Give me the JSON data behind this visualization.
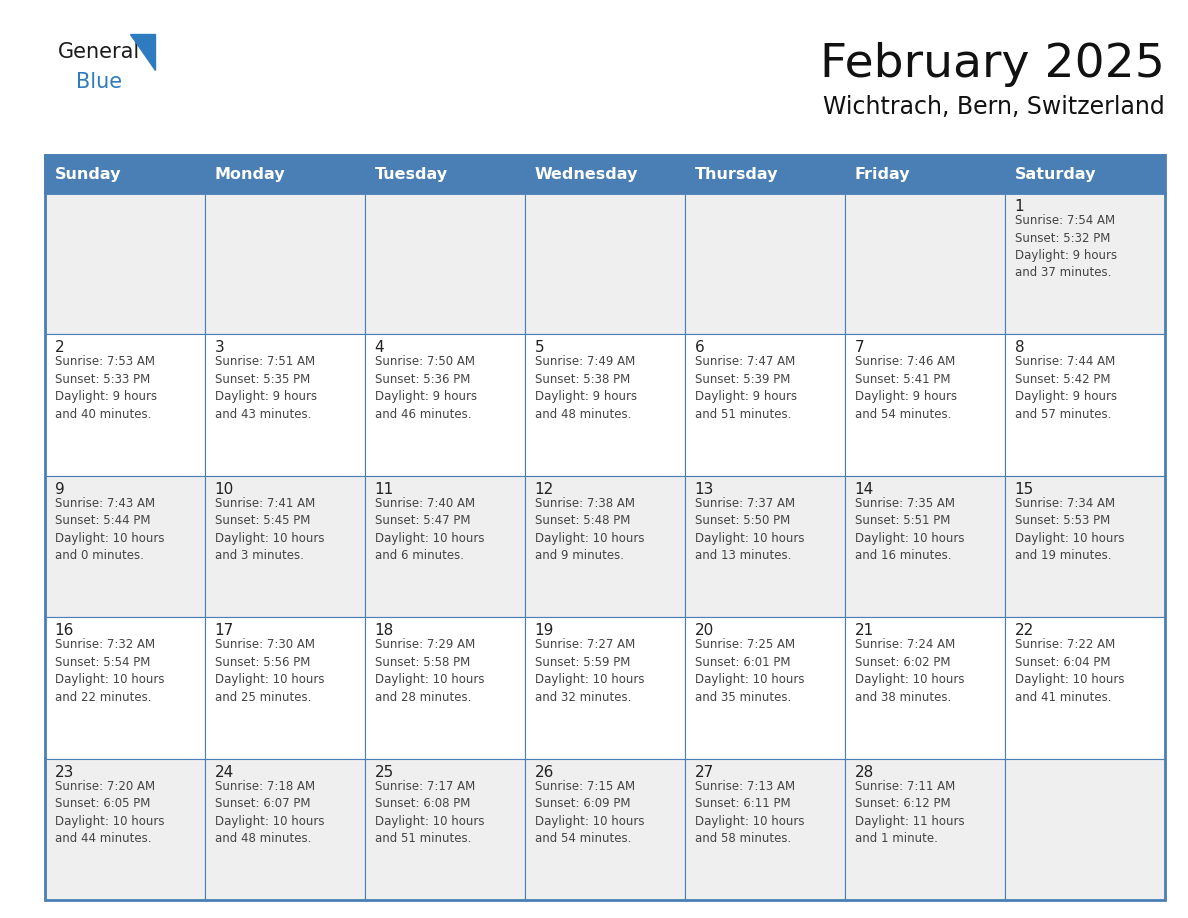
{
  "title": "February 2025",
  "subtitle": "Wichtrach, Bern, Switzerland",
  "header_bg": "#4a7fb5",
  "header_text": "#ffffff",
  "row_bg_light": "#efefef",
  "row_bg_white": "#ffffff",
  "day_names": [
    "Sunday",
    "Monday",
    "Tuesday",
    "Wednesday",
    "Thursday",
    "Friday",
    "Saturday"
  ],
  "border_color": "#4a7fb5",
  "text_color": "#444444",
  "day_number_color": "#222222",
  "logo_general_color": "#1a1a1a",
  "logo_blue_color": "#2e7bbf",
  "weeks": [
    [
      {
        "day": null,
        "sunrise": null,
        "sunset": null,
        "daylight": null
      },
      {
        "day": null,
        "sunrise": null,
        "sunset": null,
        "daylight": null
      },
      {
        "day": null,
        "sunrise": null,
        "sunset": null,
        "daylight": null
      },
      {
        "day": null,
        "sunrise": null,
        "sunset": null,
        "daylight": null
      },
      {
        "day": null,
        "sunrise": null,
        "sunset": null,
        "daylight": null
      },
      {
        "day": null,
        "sunrise": null,
        "sunset": null,
        "daylight": null
      },
      {
        "day": 1,
        "sunrise": "7:54 AM",
        "sunset": "5:32 PM",
        "daylight": "9 hours and 37 minutes."
      }
    ],
    [
      {
        "day": 2,
        "sunrise": "7:53 AM",
        "sunset": "5:33 PM",
        "daylight": "9 hours and 40 minutes."
      },
      {
        "day": 3,
        "sunrise": "7:51 AM",
        "sunset": "5:35 PM",
        "daylight": "9 hours and 43 minutes."
      },
      {
        "day": 4,
        "sunrise": "7:50 AM",
        "sunset": "5:36 PM",
        "daylight": "9 hours and 46 minutes."
      },
      {
        "day": 5,
        "sunrise": "7:49 AM",
        "sunset": "5:38 PM",
        "daylight": "9 hours and 48 minutes."
      },
      {
        "day": 6,
        "sunrise": "7:47 AM",
        "sunset": "5:39 PM",
        "daylight": "9 hours and 51 minutes."
      },
      {
        "day": 7,
        "sunrise": "7:46 AM",
        "sunset": "5:41 PM",
        "daylight": "9 hours and 54 minutes."
      },
      {
        "day": 8,
        "sunrise": "7:44 AM",
        "sunset": "5:42 PM",
        "daylight": "9 hours and 57 minutes."
      }
    ],
    [
      {
        "day": 9,
        "sunrise": "7:43 AM",
        "sunset": "5:44 PM",
        "daylight": "10 hours and 0 minutes."
      },
      {
        "day": 10,
        "sunrise": "7:41 AM",
        "sunset": "5:45 PM",
        "daylight": "10 hours and 3 minutes."
      },
      {
        "day": 11,
        "sunrise": "7:40 AM",
        "sunset": "5:47 PM",
        "daylight": "10 hours and 6 minutes."
      },
      {
        "day": 12,
        "sunrise": "7:38 AM",
        "sunset": "5:48 PM",
        "daylight": "10 hours and 9 minutes."
      },
      {
        "day": 13,
        "sunrise": "7:37 AM",
        "sunset": "5:50 PM",
        "daylight": "10 hours and 13 minutes."
      },
      {
        "day": 14,
        "sunrise": "7:35 AM",
        "sunset": "5:51 PM",
        "daylight": "10 hours and 16 minutes."
      },
      {
        "day": 15,
        "sunrise": "7:34 AM",
        "sunset": "5:53 PM",
        "daylight": "10 hours and 19 minutes."
      }
    ],
    [
      {
        "day": 16,
        "sunrise": "7:32 AM",
        "sunset": "5:54 PM",
        "daylight": "10 hours and 22 minutes."
      },
      {
        "day": 17,
        "sunrise": "7:30 AM",
        "sunset": "5:56 PM",
        "daylight": "10 hours and 25 minutes."
      },
      {
        "day": 18,
        "sunrise": "7:29 AM",
        "sunset": "5:58 PM",
        "daylight": "10 hours and 28 minutes."
      },
      {
        "day": 19,
        "sunrise": "7:27 AM",
        "sunset": "5:59 PM",
        "daylight": "10 hours and 32 minutes."
      },
      {
        "day": 20,
        "sunrise": "7:25 AM",
        "sunset": "6:01 PM",
        "daylight": "10 hours and 35 minutes."
      },
      {
        "day": 21,
        "sunrise": "7:24 AM",
        "sunset": "6:02 PM",
        "daylight": "10 hours and 38 minutes."
      },
      {
        "day": 22,
        "sunrise": "7:22 AM",
        "sunset": "6:04 PM",
        "daylight": "10 hours and 41 minutes."
      }
    ],
    [
      {
        "day": 23,
        "sunrise": "7:20 AM",
        "sunset": "6:05 PM",
        "daylight": "10 hours and 44 minutes."
      },
      {
        "day": 24,
        "sunrise": "7:18 AM",
        "sunset": "6:07 PM",
        "daylight": "10 hours and 48 minutes."
      },
      {
        "day": 25,
        "sunrise": "7:17 AM",
        "sunset": "6:08 PM",
        "daylight": "10 hours and 51 minutes."
      },
      {
        "day": 26,
        "sunrise": "7:15 AM",
        "sunset": "6:09 PM",
        "daylight": "10 hours and 54 minutes."
      },
      {
        "day": 27,
        "sunrise": "7:13 AM",
        "sunset": "6:11 PM",
        "daylight": "10 hours and 58 minutes."
      },
      {
        "day": 28,
        "sunrise": "7:11 AM",
        "sunset": "6:12 PM",
        "daylight": "11 hours and 1 minute."
      },
      {
        "day": null,
        "sunrise": null,
        "sunset": null,
        "daylight": null
      }
    ]
  ],
  "fig_width": 11.88,
  "fig_height": 9.18,
  "dpi": 100
}
